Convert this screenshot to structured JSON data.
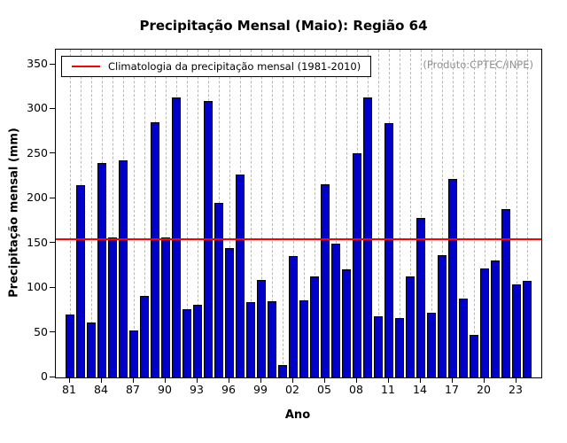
{
  "chart": {
    "title": "Precipitação Mensal (Maio): Região 64",
    "legend_label": "Climatologia da precipitação mensal (1981-2010)",
    "source_note": "(Produto:CPTEC/INPE)",
    "xlabel": "Ano",
    "ylabel": "Precipitação mensal (mm)"
  },
  "chart_data": {
    "type": "bar",
    "title": "Precipitação Mensal (Maio): Região 64",
    "xlabel": "Ano",
    "ylabel": "Precipitação mensal (mm)",
    "ylim": [
      0,
      350
    ],
    "yticks": [
      0,
      50,
      100,
      150,
      200,
      250,
      300,
      350
    ],
    "grid": "vertical-dashed",
    "legend_position": "top-left-inside",
    "legend_label": "Climatologia da precipitação mensal (1981-2010)",
    "source_note": "(Produto:CPTEC/INPE)",
    "climatology_value": 155,
    "climatology_color": "#ff0000",
    "bar_fill_color": "#0000c8",
    "bar_edge_color": "#000000",
    "xtick_labels": [
      "81",
      "84",
      "87",
      "90",
      "93",
      "96",
      "99",
      "02",
      "05",
      "08",
      "11",
      "14",
      "17",
      "20",
      "23"
    ],
    "years": [
      "81",
      "82",
      "83",
      "84",
      "85",
      "86",
      "87",
      "88",
      "89",
      "90",
      "91",
      "92",
      "93",
      "94",
      "95",
      "96",
      "97",
      "98",
      "99",
      "00",
      "01",
      "02",
      "03",
      "04",
      "05",
      "06",
      "07",
      "08",
      "09",
      "10",
      "11",
      "12",
      "13",
      "14",
      "15",
      "16",
      "17",
      "18",
      "19",
      "20",
      "21",
      "22",
      "23",
      "24"
    ],
    "values": [
      70,
      215,
      61,
      240,
      157,
      243,
      53,
      91,
      286,
      157,
      313,
      76,
      81,
      309,
      195,
      145,
      227,
      84,
      109,
      85,
      14,
      136,
      86,
      113,
      216,
      150,
      121,
      251,
      313,
      68,
      285,
      66,
      113,
      178,
      72,
      137,
      222,
      88,
      48,
      122,
      131,
      188,
      104,
      108
    ]
  }
}
